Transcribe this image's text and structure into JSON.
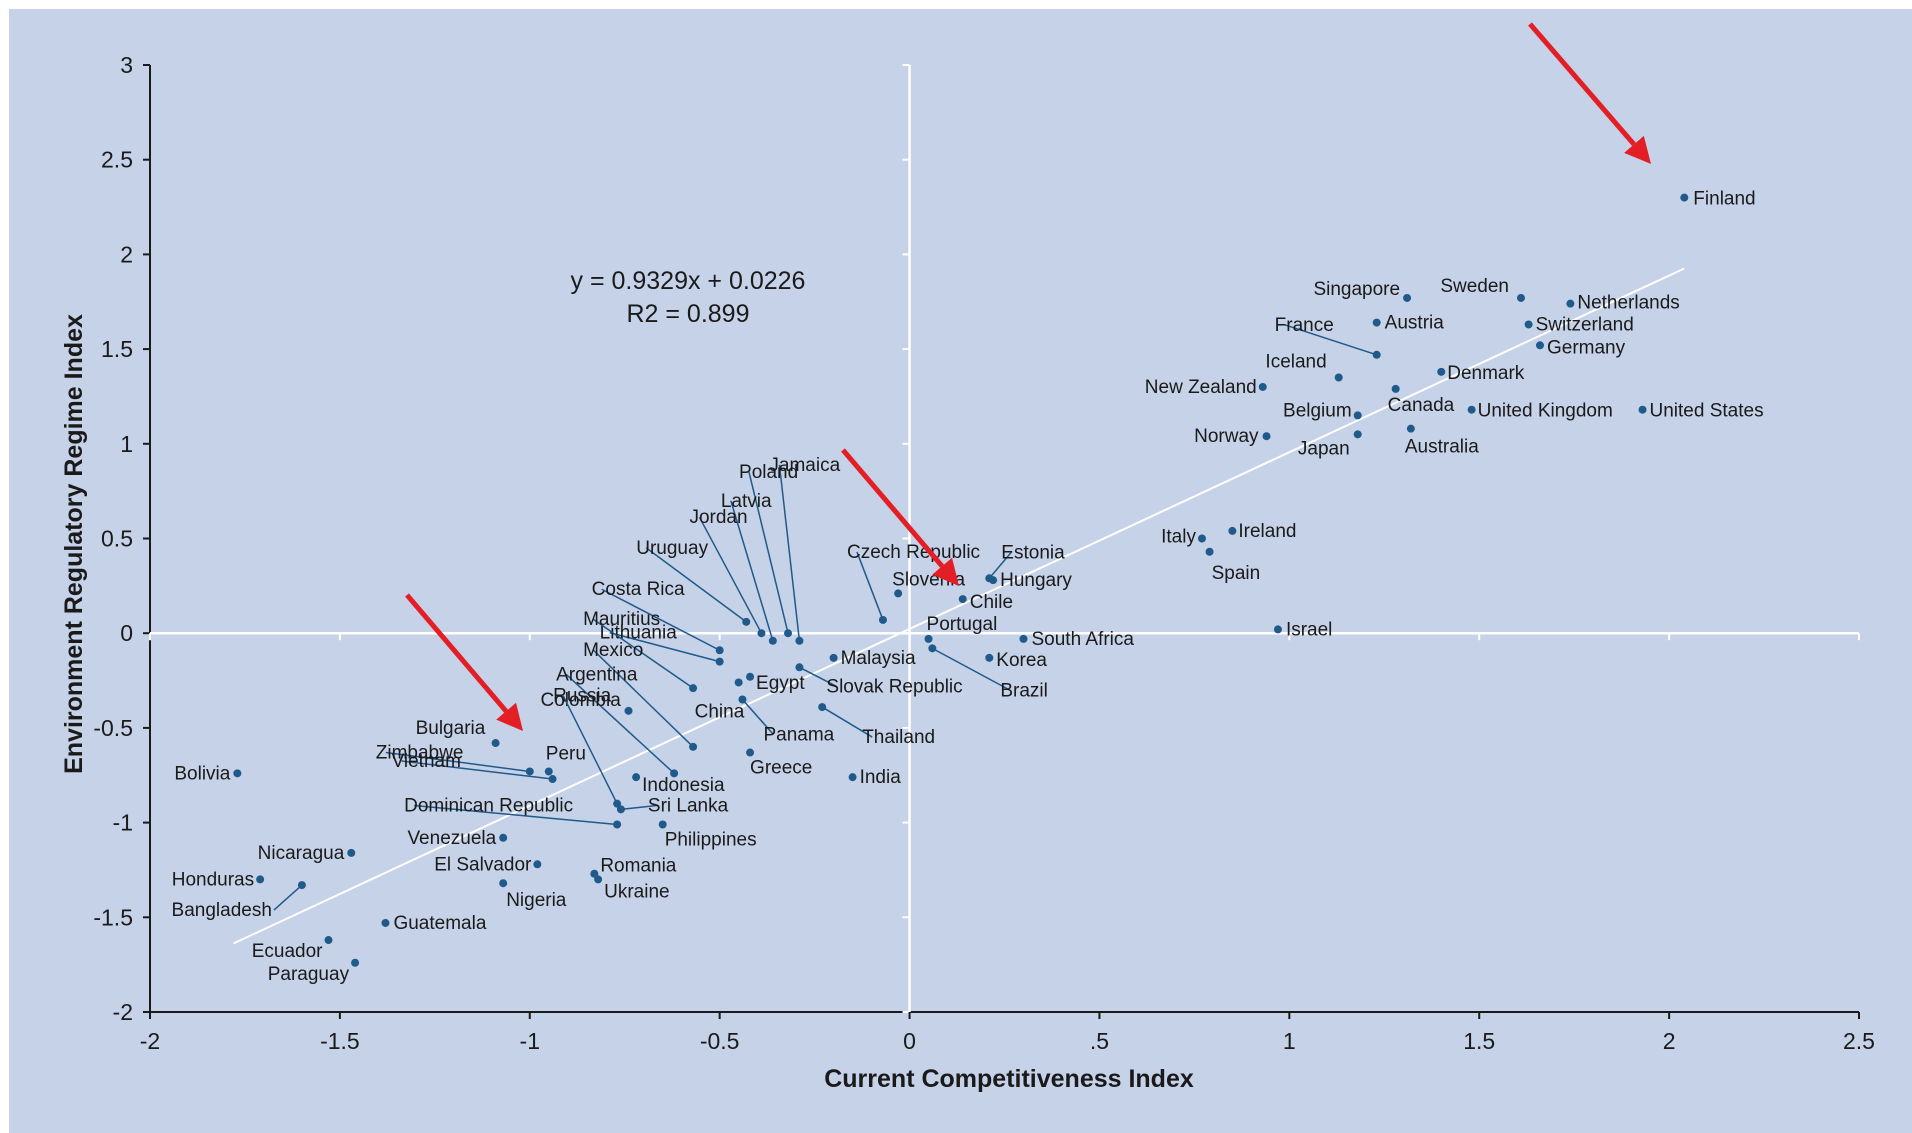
{
  "chart_data": {
    "type": "scatter",
    "title": "",
    "xlabel": "Current Competitiveness Index",
    "ylabel": "Environment Regulatory Regime Index",
    "xlim": [
      -2,
      2.5
    ],
    "ylim": [
      -2,
      3
    ],
    "x_ticks": [
      -2,
      -1.5,
      -1,
      -0.5,
      0,
      0.5,
      1,
      1.5,
      2,
      2.5
    ],
    "x_tick_labels": [
      "-2",
      "-1.5",
      "-1",
      "-0.5",
      "0",
      ".5",
      "1",
      "1.5",
      "2",
      "2.5"
    ],
    "y_ticks": [
      -2,
      -1.5,
      -1,
      -0.5,
      0,
      0.5,
      1,
      1.5,
      2,
      2.5,
      3
    ],
    "y_tick_labels": [
      "-2",
      "-1.5",
      "-1",
      "-0.5",
      "0",
      "0.5",
      "1",
      "1.5",
      "2",
      "2.5",
      "3"
    ],
    "grid": false,
    "colors": {
      "background": "#c6d2e8",
      "point": "#1f5a8a",
      "trendline": "#ffffff",
      "arrow": "#e31e24"
    },
    "trendline": {
      "slope": 0.9329,
      "intercept": 0.0226,
      "x_range": [
        -1.78,
        2.04
      ]
    },
    "annotations": {
      "equation": "y = 0.9329x + 0.0226",
      "r2": "R2 = 0.899"
    },
    "points": [
      {
        "label": "Finland",
        "x": 2.04,
        "y": 2.3
      },
      {
        "label": "Sweden",
        "x": 1.61,
        "y": 1.77
      },
      {
        "label": "Netherlands",
        "x": 1.74,
        "y": 1.74
      },
      {
        "label": "Singapore",
        "x": 1.31,
        "y": 1.77
      },
      {
        "label": "Switzerland",
        "x": 1.63,
        "y": 1.63
      },
      {
        "label": "Austria",
        "x": 1.23,
        "y": 1.64
      },
      {
        "label": "Germany",
        "x": 1.66,
        "y": 1.52
      },
      {
        "label": "France",
        "x": 1.23,
        "y": 1.47
      },
      {
        "label": "Iceland",
        "x": 1.13,
        "y": 1.35
      },
      {
        "label": "Denmark",
        "x": 1.4,
        "y": 1.38
      },
      {
        "label": "New Zealand",
        "x": 0.93,
        "y": 1.3
      },
      {
        "label": "Canada",
        "x": 1.28,
        "y": 1.29
      },
      {
        "label": "Belgium",
        "x": 1.18,
        "y": 1.15
      },
      {
        "label": "United Kingdom",
        "x": 1.48,
        "y": 1.18
      },
      {
        "label": "United States",
        "x": 1.93,
        "y": 1.18
      },
      {
        "label": "Norway",
        "x": 0.94,
        "y": 1.04
      },
      {
        "label": "Japan",
        "x": 1.18,
        "y": 1.05
      },
      {
        "label": "Australia",
        "x": 1.32,
        "y": 1.08
      },
      {
        "label": "Ireland",
        "x": 0.85,
        "y": 0.54
      },
      {
        "label": "Italy",
        "x": 0.77,
        "y": 0.5
      },
      {
        "label": "Spain",
        "x": 0.79,
        "y": 0.43
      },
      {
        "label": "Israel",
        "x": 0.97,
        "y": 0.02
      },
      {
        "label": "Estonia",
        "x": 0.21,
        "y": 0.29
      },
      {
        "label": "Hungary",
        "x": 0.22,
        "y": 0.28
      },
      {
        "label": "Czech Republic",
        "x": -0.07,
        "y": 0.07
      },
      {
        "label": "Slovenia",
        "x": -0.03,
        "y": 0.21
      },
      {
        "label": "Chile",
        "x": 0.14,
        "y": 0.18
      },
      {
        "label": "Portugal",
        "x": 0.05,
        "y": -0.03
      },
      {
        "label": "South Africa",
        "x": 0.3,
        "y": -0.03
      },
      {
        "label": "Korea",
        "x": 0.21,
        "y": -0.13
      },
      {
        "label": "Brazil",
        "x": 0.06,
        "y": -0.08
      },
      {
        "label": "Jamaica",
        "x": -0.29,
        "y": -0.04
      },
      {
        "label": "Poland",
        "x": -0.32,
        "y": 0.0
      },
      {
        "label": "Latvia",
        "x": -0.36,
        "y": -0.04
      },
      {
        "label": "Jordan",
        "x": -0.39,
        "y": 0.0
      },
      {
        "label": "Uruguay",
        "x": -0.43,
        "y": 0.06
      },
      {
        "label": "Costa Rica",
        "x": -0.5,
        "y": -0.09
      },
      {
        "label": "Lithuania",
        "x": -0.5,
        "y": -0.15
      },
      {
        "label": "Malaysia",
        "x": -0.2,
        "y": -0.13
      },
      {
        "label": "Slovak Republic",
        "x": -0.29,
        "y": -0.18
      },
      {
        "label": "Egypt",
        "x": -0.42,
        "y": -0.23
      },
      {
        "label": "Mauritius",
        "x": -0.57,
        "y": -0.29
      },
      {
        "label": "Mexico",
        "x": -0.57,
        "y": -0.6
      },
      {
        "label": "Argentina",
        "x": -0.62,
        "y": -0.74
      },
      {
        "label": "Colombia",
        "x": -0.74,
        "y": -0.41
      },
      {
        "label": "China",
        "x": -0.45,
        "y": -0.26
      },
      {
        "label": "Panama",
        "x": -0.44,
        "y": -0.35
      },
      {
        "label": "Thailand",
        "x": -0.23,
        "y": -0.39
      },
      {
        "label": "Greece",
        "x": -0.42,
        "y": -0.63
      },
      {
        "label": "India",
        "x": -0.15,
        "y": -0.76
      },
      {
        "label": "Indonesia",
        "x": -0.72,
        "y": -0.76
      },
      {
        "label": "Russia",
        "x": -0.77,
        "y": -0.9
      },
      {
        "label": "Sri Lanka",
        "x": -0.76,
        "y": -0.93
      },
      {
        "label": "Philippines",
        "x": -0.65,
        "y": -1.01
      },
      {
        "label": "Dominican Republic",
        "x": -0.77,
        "y": -1.01
      },
      {
        "label": "Bulgaria",
        "x": -1.09,
        "y": -0.58
      },
      {
        "label": "Zimbabwe",
        "x": -1.0,
        "y": -0.73
      },
      {
        "label": "Peru",
        "x": -0.95,
        "y": -0.73
      },
      {
        "label": "Vietnam",
        "x": -0.94,
        "y": -0.77
      },
      {
        "label": "Bolivia",
        "x": -1.77,
        "y": -0.74
      },
      {
        "label": "Venezuela",
        "x": -1.07,
        "y": -1.08
      },
      {
        "label": "El Salvador",
        "x": -0.98,
        "y": -1.22
      },
      {
        "label": "Nigeria",
        "x": -1.07,
        "y": -1.32
      },
      {
        "label": "Romania",
        "x": -0.83,
        "y": -1.27
      },
      {
        "label": "Ukraine",
        "x": -0.82,
        "y": -1.3
      },
      {
        "label": "Nicaragua",
        "x": -1.47,
        "y": -1.16
      },
      {
        "label": "Honduras",
        "x": -1.71,
        "y": -1.3
      },
      {
        "label": "Bangladesh",
        "x": -1.6,
        "y": -1.33
      },
      {
        "label": "Guatemala",
        "x": -1.38,
        "y": -1.53
      },
      {
        "label": "Ecuador",
        "x": -1.53,
        "y": -1.62
      },
      {
        "label": "Paraguay",
        "x": -1.46,
        "y": -1.74
      }
    ]
  }
}
